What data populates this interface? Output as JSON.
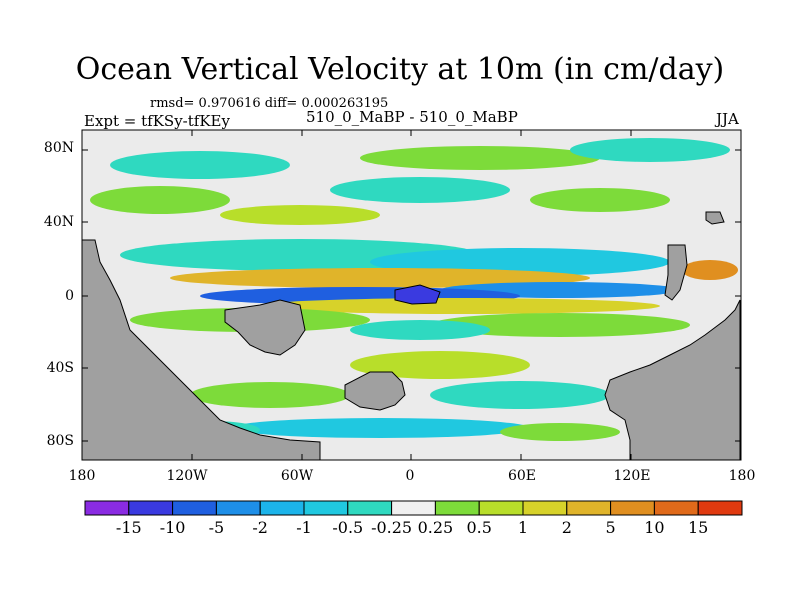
{
  "title": "Ocean Vertical Velocity at 10m (in cm/day)",
  "stats_line": "rmsd= 0.970616 diff= 0.000263195",
  "expt_line": "Expt = tfKSy-tfKEy",
  "experiments": "510_0_MaBP - 510_0_MaBP",
  "season": "JJA",
  "lat_ticks": [
    "80N",
    "40N",
    "0",
    "40S",
    "80S"
  ],
  "lon_ticks": [
    "180",
    "120W",
    "60W",
    "0",
    "60E",
    "120E",
    "180"
  ],
  "colorbar": {
    "colors": [
      "#8a2be2",
      "#3a3ae0",
      "#1f5fe0",
      "#1e8fe8",
      "#1cb4ea",
      "#20c8e0",
      "#2fd9c0",
      "#f0f0f0",
      "#7ddb3a",
      "#b8de2a",
      "#d7d22a",
      "#e0b42a",
      "#e08f20",
      "#e06a1a",
      "#e03a10"
    ],
    "labels": [
      "-15",
      "-10",
      "-5",
      "-2",
      "-1",
      "-0.5",
      "-0.25",
      "0.25",
      "0.5",
      "1",
      "2",
      "5",
      "10",
      "15"
    ]
  },
  "colors": {
    "land": "#a0a0a0",
    "background": "#ebebeb",
    "frame": "#000000"
  }
}
